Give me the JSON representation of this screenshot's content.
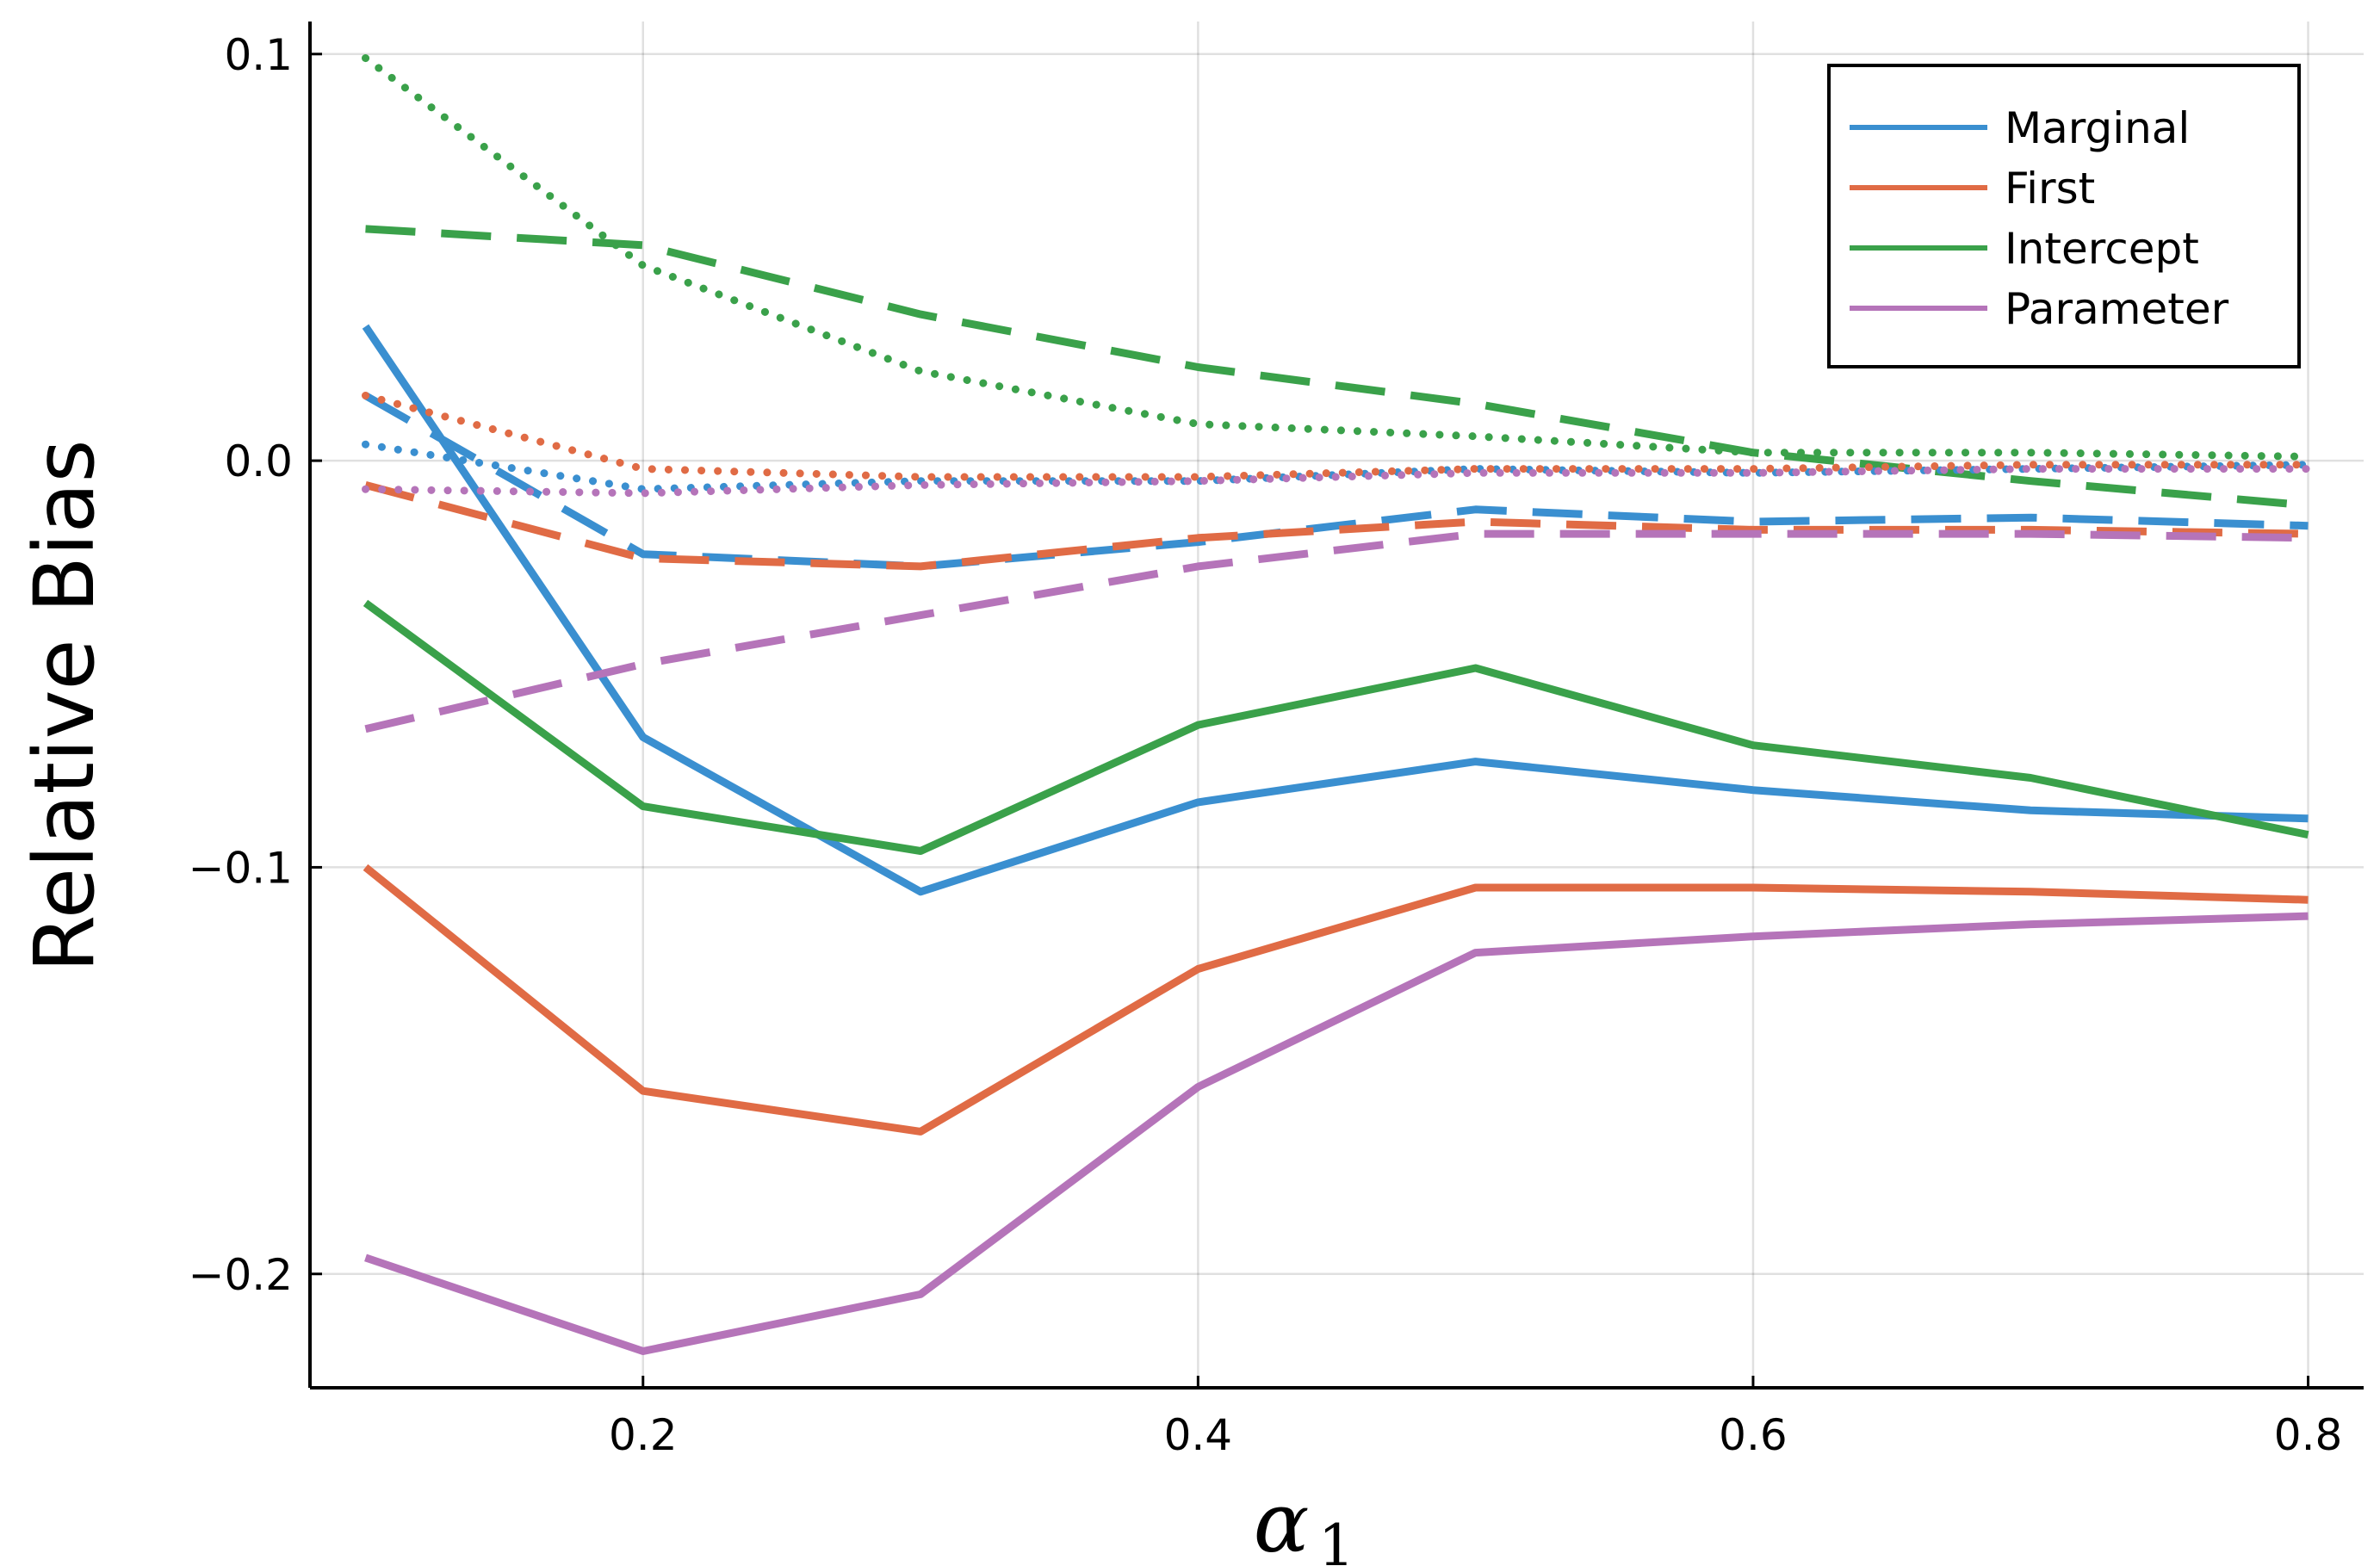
{
  "chart_data": {
    "type": "line",
    "title": "",
    "xlabel": "α",
    "xlabel_subscript": "1",
    "ylabel": "Relative Bias",
    "xlim": [
      0.08,
      0.82
    ],
    "ylim": [
      -0.228,
      0.108
    ],
    "grid": true,
    "legend_position": "top-right",
    "xticks": [
      0.2,
      0.4,
      0.6,
      0.8
    ],
    "xtick_labels": [
      "0.2",
      "0.4",
      "0.6",
      "0.8"
    ],
    "yticks": [
      0.1,
      0.0,
      -0.1,
      -0.2
    ],
    "ytick_labels": [
      "0.1",
      "0.0",
      "−0.1",
      "−0.2"
    ],
    "x": [
      0.1,
      0.2,
      0.3,
      0.4,
      0.5,
      0.6,
      0.7,
      0.8
    ],
    "legend": [
      {
        "name": "Marginal",
        "color": "#3a8fd0"
      },
      {
        "name": "First",
        "color": "#e06b45"
      },
      {
        "name": "Intercept",
        "color": "#3aa14a"
      },
      {
        "name": "Parameter",
        "color": "#b574b9"
      }
    ],
    "series": [
      {
        "name": "Marginal",
        "style": "solid",
        "color": "#3a8fd0",
        "values": [
          0.033,
          -0.068,
          -0.106,
          -0.084,
          -0.074,
          -0.081,
          -0.086,
          -0.088
        ]
      },
      {
        "name": "First",
        "style": "solid",
        "color": "#e06b45",
        "values": [
          -0.1,
          -0.155,
          -0.165,
          -0.125,
          -0.105,
          -0.105,
          -0.106,
          -0.108
        ]
      },
      {
        "name": "Intercept",
        "style": "solid",
        "color": "#3aa14a",
        "values": [
          -0.035,
          -0.085,
          -0.096,
          -0.065,
          -0.051,
          -0.07,
          -0.078,
          -0.092
        ]
      },
      {
        "name": "Parameter",
        "style": "solid",
        "color": "#b574b9",
        "values": [
          -0.196,
          -0.219,
          -0.205,
          -0.154,
          -0.121,
          -0.117,
          -0.114,
          -0.112
        ]
      },
      {
        "name": "Marginal",
        "style": "dashed",
        "color": "#3a8fd0",
        "values": [
          0.016,
          -0.023,
          -0.026,
          -0.02,
          -0.012,
          -0.015,
          -0.014,
          -0.016
        ]
      },
      {
        "name": "First",
        "style": "dashed",
        "color": "#e06b45",
        "values": [
          -0.006,
          -0.024,
          -0.026,
          -0.019,
          -0.015,
          -0.017,
          -0.017,
          -0.018
        ]
      },
      {
        "name": "Intercept",
        "style": "dashed",
        "color": "#3aa14a",
        "values": [
          0.057,
          0.053,
          0.036,
          0.023,
          0.014,
          0.002,
          -0.005,
          -0.011
        ]
      },
      {
        "name": "Parameter",
        "style": "dashed",
        "color": "#b574b9",
        "values": [
          -0.066,
          -0.05,
          -0.038,
          -0.026,
          -0.018,
          -0.018,
          -0.018,
          -0.019
        ]
      },
      {
        "name": "Marginal",
        "style": "dotted",
        "color": "#3a8fd0",
        "values": [
          0.004,
          -0.007,
          -0.005,
          -0.005,
          -0.002,
          -0.003,
          -0.002,
          -0.001
        ]
      },
      {
        "name": "First",
        "style": "dotted",
        "color": "#e06b45",
        "values": [
          0.016,
          -0.002,
          -0.004,
          -0.004,
          -0.002,
          -0.002,
          -0.001,
          -0.001
        ]
      },
      {
        "name": "Intercept",
        "style": "dotted",
        "color": "#3aa14a",
        "values": [
          0.099,
          0.048,
          0.022,
          0.009,
          0.006,
          0.002,
          0.002,
          0.001
        ]
      },
      {
        "name": "Parameter",
        "style": "dotted",
        "color": "#b574b9",
        "values": [
          -0.007,
          -0.008,
          -0.006,
          -0.005,
          -0.003,
          -0.003,
          -0.002,
          -0.002
        ]
      }
    ]
  }
}
